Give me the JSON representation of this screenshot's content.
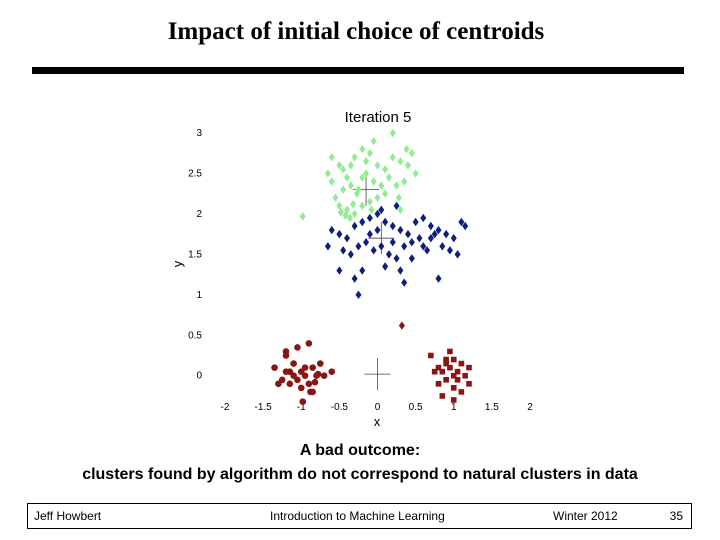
{
  "slide": {
    "title": "Impact of initial choice of centroids",
    "caption_line1": "A bad outcome:",
    "caption_line2": "clusters found by algorithm do not correspond to natural clusters in data"
  },
  "footer": {
    "author": "Jeff Howbert",
    "course": "Introduction to Machine Learning",
    "term": "Winter 2012",
    "page": "35"
  },
  "chart_data": {
    "type": "scatter",
    "title": "Iteration 5",
    "xlabel": "x",
    "ylabel": "y",
    "xlim": [
      -2,
      2
    ],
    "ylim": [
      -0.3,
      3
    ],
    "xticks": [
      "-2",
      "-1.5",
      "-1",
      "-0.5",
      "0",
      "0.5",
      "1",
      "1.5",
      "2"
    ],
    "yticks": [
      "0",
      "0.5",
      "1",
      "1.5",
      "2",
      "2.5",
      "3"
    ],
    "grid": false,
    "legend": "none",
    "centroids": [
      [
        -0.15,
        2.3
      ],
      [
        0.05,
        1.7
      ],
      [
        0,
        0.02
      ]
    ],
    "series": [
      {
        "color": "#90EE90",
        "marker": "diamond",
        "points": [
          [
            -0.6,
            2.7
          ],
          [
            -0.5,
            2.6
          ],
          [
            -0.45,
            2.55
          ],
          [
            -0.4,
            2.45
          ],
          [
            -0.35,
            2.6
          ],
          [
            -0.3,
            2.7
          ],
          [
            -0.2,
            2.8
          ],
          [
            -0.1,
            2.75
          ],
          [
            0.0,
            2.6
          ],
          [
            0.1,
            2.55
          ],
          [
            0.2,
            2.7
          ],
          [
            0.3,
            2.65
          ],
          [
            0.4,
            2.6
          ],
          [
            0.5,
            2.5
          ],
          [
            0.35,
            2.4
          ],
          [
            0.25,
            2.35
          ],
          [
            0.15,
            2.45
          ],
          [
            0.05,
            2.35
          ],
          [
            -0.05,
            2.4
          ],
          [
            -0.15,
            2.5
          ],
          [
            -0.25,
            2.3
          ],
          [
            -0.35,
            2.35
          ],
          [
            -0.45,
            2.3
          ],
          [
            -0.55,
            2.2
          ],
          [
            -0.5,
            2.1
          ],
          [
            -0.4,
            2.05
          ],
          [
            -0.3,
            2.0
          ],
          [
            -0.2,
            2.1
          ],
          [
            -0.1,
            2.15
          ],
          [
            0.0,
            2.2
          ],
          [
            -0.42,
            1.98
          ],
          [
            -0.36,
            1.95
          ],
          [
            -0.32,
            2.12
          ],
          [
            -0.48,
            2.02
          ],
          [
            -0.27,
            2.25
          ],
          [
            -0.6,
            2.4
          ],
          [
            -0.05,
            2.9
          ],
          [
            0.2,
            3.0
          ],
          [
            0.38,
            2.8
          ],
          [
            -0.15,
            2.65
          ],
          [
            0.1,
            2.25
          ],
          [
            0.28,
            2.2
          ],
          [
            -0.08,
            2.05
          ],
          [
            0.3,
            2.05
          ],
          [
            -0.98,
            1.97
          ],
          [
            -0.65,
            2.5
          ],
          [
            0.45,
            2.75
          ],
          [
            -0.2,
            2.45
          ]
        ]
      },
      {
        "color": "#0D1E7E",
        "marker": "diamond",
        "points": [
          [
            -0.6,
            1.8
          ],
          [
            -0.5,
            1.75
          ],
          [
            -0.4,
            1.7
          ],
          [
            -0.3,
            1.85
          ],
          [
            -0.2,
            1.9
          ],
          [
            -0.1,
            1.95
          ],
          [
            0.0,
            2.0
          ],
          [
            0.1,
            1.9
          ],
          [
            0.2,
            1.85
          ],
          [
            0.3,
            1.8
          ],
          [
            0.4,
            1.75
          ],
          [
            0.5,
            1.9
          ],
          [
            0.6,
            1.95
          ],
          [
            0.7,
            1.85
          ],
          [
            0.8,
            1.8
          ],
          [
            0.9,
            1.75
          ],
          [
            1.0,
            1.7
          ],
          [
            1.1,
            1.9
          ],
          [
            -0.65,
            1.6
          ],
          [
            -0.45,
            1.55
          ],
          [
            -0.35,
            1.5
          ],
          [
            -0.25,
            1.6
          ],
          [
            -0.15,
            1.65
          ],
          [
            -0.05,
            1.55
          ],
          [
            0.05,
            1.6
          ],
          [
            0.15,
            1.5
          ],
          [
            0.25,
            1.45
          ],
          [
            0.35,
            1.6
          ],
          [
            0.45,
            1.65
          ],
          [
            0.55,
            1.7
          ],
          [
            0.65,
            1.55
          ],
          [
            0.75,
            1.75
          ],
          [
            0.85,
            1.6
          ],
          [
            0.95,
            1.55
          ],
          [
            -0.5,
            1.3
          ],
          [
            -0.2,
            1.3
          ],
          [
            0.1,
            1.35
          ],
          [
            0.3,
            1.3
          ],
          [
            0.45,
            1.45
          ],
          [
            -0.25,
            1.0
          ],
          [
            0.35,
            1.15
          ],
          [
            0.8,
            1.2
          ],
          [
            1.05,
            1.5
          ],
          [
            1.15,
            1.85
          ],
          [
            -0.1,
            1.75
          ],
          [
            0.2,
            1.65
          ],
          [
            0.6,
            1.6
          ],
          [
            0.7,
            1.7
          ],
          [
            -0.3,
            1.2
          ],
          [
            0.0,
            1.8
          ],
          [
            0.05,
            2.05
          ],
          [
            0.25,
            2.1
          ]
        ]
      },
      {
        "color": "#8B1414",
        "marker": "circle",
        "points": [
          [
            -1.35,
            0.1
          ],
          [
            -1.25,
            -0.05
          ],
          [
            -1.2,
            0.05
          ],
          [
            -1.15,
            -0.1
          ],
          [
            -1.1,
            0.0
          ],
          [
            -1.05,
            -0.05
          ],
          [
            -1.0,
            0.05
          ],
          [
            -0.95,
            0.1
          ],
          [
            -0.9,
            -0.1
          ],
          [
            -0.85,
            -0.2
          ],
          [
            -0.8,
            0.0
          ],
          [
            -0.75,
            0.15
          ],
          [
            -0.85,
            0.1
          ],
          [
            -1.0,
            -0.15
          ],
          [
            -1.1,
            0.15
          ],
          [
            -1.2,
            0.25
          ],
          [
            -1.05,
            0.35
          ],
          [
            -0.9,
            0.4
          ],
          [
            -1.2,
            0.3
          ],
          [
            -0.6,
            0.05
          ],
          [
            -1.3,
            -0.1
          ],
          [
            -1.15,
            0.05
          ],
          [
            -0.95,
            0.0
          ],
          [
            -0.88,
            -0.2
          ],
          [
            -0.78,
            0.02
          ],
          [
            -0.7,
            0.0
          ],
          [
            -0.98,
            -0.32
          ],
          [
            -0.82,
            -0.08
          ]
        ]
      },
      {
        "color": "#8B1414",
        "marker": "square",
        "points": [
          [
            0.7,
            0.25
          ],
          [
            0.8,
            0.1
          ],
          [
            0.85,
            0.05
          ],
          [
            0.9,
            0.15
          ],
          [
            0.95,
            0.1
          ],
          [
            1.0,
            0.2
          ],
          [
            1.05,
            0.05
          ],
          [
            1.1,
            0.15
          ],
          [
            1.2,
            0.1
          ],
          [
            0.8,
            -0.1
          ],
          [
            0.9,
            -0.05
          ],
          [
            1.0,
            -0.15
          ],
          [
            1.1,
            -0.2
          ],
          [
            1.2,
            -0.1
          ],
          [
            0.85,
            -0.25
          ],
          [
            1.0,
            0.0
          ],
          [
            0.9,
            0.2
          ],
          [
            1.05,
            -0.05
          ],
          [
            0.75,
            0.05
          ],
          [
            1.15,
            0.0
          ],
          [
            1.0,
            -0.3
          ],
          [
            0.95,
            0.3
          ]
        ]
      },
      {
        "color": "#8B1414",
        "marker": "diamond",
        "points": [
          [
            0.32,
            0.62
          ]
        ]
      }
    ]
  }
}
